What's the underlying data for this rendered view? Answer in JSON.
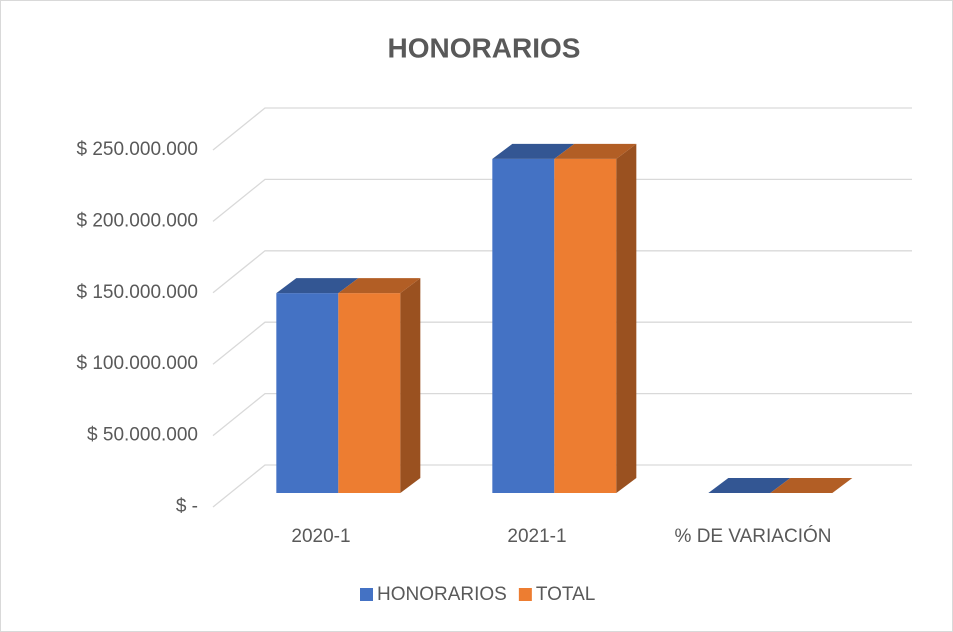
{
  "chart_data": {
    "type": "bar3d",
    "title": "HONORARIOS",
    "categories": [
      "2020-1",
      "2021-1",
      "%  DE VARIACIÓN"
    ],
    "series": [
      {
        "name": "HONORARIOS",
        "color": "#4472c4",
        "values": [
          140000000,
          234000000,
          0
        ]
      },
      {
        "name": "TOTAL",
        "color": "#ed7d31",
        "values": [
          140000000,
          234000000,
          0
        ]
      }
    ],
    "ylim": [
      0,
      250000000
    ],
    "yticks": [
      {
        "value": 0,
        "label": "$ -"
      },
      {
        "value": 50000000,
        "label": "$ 50.000.000"
      },
      {
        "value": 100000000,
        "label": "$ 100.000.000"
      },
      {
        "value": 150000000,
        "label": "$ 150.000.000"
      },
      {
        "value": 200000000,
        "label": "$ 200.000.000"
      },
      {
        "value": 250000000,
        "label": "$ 250.000.000"
      }
    ],
    "grid": true,
    "legend": "bottom"
  }
}
